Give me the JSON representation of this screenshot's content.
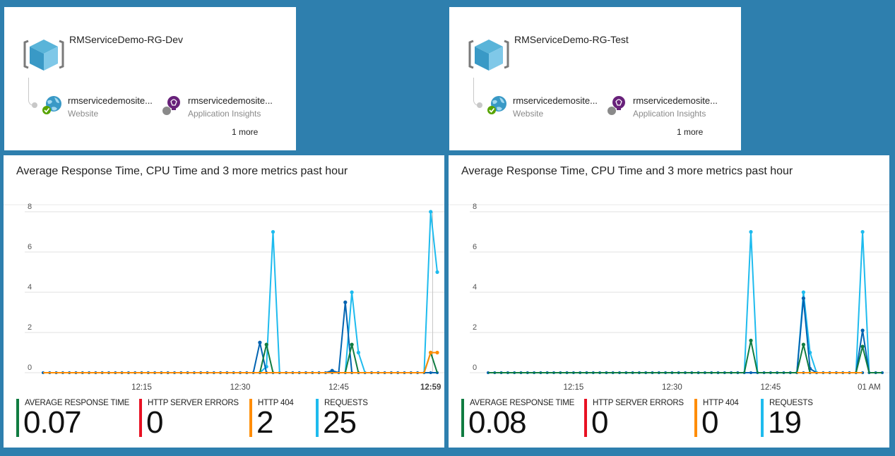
{
  "colors": {
    "avg_response_time": "#107c41",
    "http_server_errors": "#e81123",
    "http_404": "#ff8c00",
    "requests": "#1ebbee",
    "cpu_dark": "#0063b1",
    "grid": "#e1e1e1"
  },
  "groups": [
    {
      "title": "RMServiceDemo-RG-Dev",
      "resources": [
        {
          "name": "rmservicedemosite...",
          "type": "Website",
          "icon": "website-globe-icon",
          "status": "check-status-icon"
        },
        {
          "name": "rmservicedemosite...",
          "type": "Application Insights",
          "icon": "app-insights-bulb-icon",
          "status": "gray-status-icon"
        }
      ],
      "more": "1 more"
    },
    {
      "title": "RMServiceDemo-RG-Test",
      "resources": [
        {
          "name": "rmservicedemosite...",
          "type": "Website",
          "icon": "website-globe-icon",
          "status": "check-status-icon"
        },
        {
          "name": "rmservicedemosite...",
          "type": "Application Insights",
          "icon": "app-insights-bulb-icon",
          "status": "gray-status-icon"
        }
      ],
      "more": "1 more"
    }
  ],
  "charts": [
    {
      "title": "Average Response Time, CPU Time and 3 more metrics past hour",
      "metrics": [
        {
          "label": "AVERAGE RESPONSE TIME",
          "value": "0.07",
          "color": "#107c41"
        },
        {
          "label": "HTTP SERVER ERRORS",
          "value": "0",
          "color": "#e81123"
        },
        {
          "label": "HTTP 404",
          "value": "2",
          "color": "#ff8c00"
        },
        {
          "label": "REQUESTS",
          "value": "25",
          "color": "#1ebbee"
        }
      ]
    },
    {
      "title": "Average Response Time, CPU Time and 3 more metrics past hour",
      "metrics": [
        {
          "label": "AVERAGE RESPONSE TIME",
          "value": "0.08",
          "color": "#107c41"
        },
        {
          "label": "HTTP SERVER ERRORS",
          "value": "0",
          "color": "#e81123"
        },
        {
          "label": "HTTP 404",
          "value": "0",
          "color": "#ff8c00"
        },
        {
          "label": "REQUESTS",
          "value": "19",
          "color": "#1ebbee"
        }
      ]
    }
  ],
  "chart_data": [
    {
      "type": "line",
      "title": "Average Response Time, CPU Time and 3 more metrics past hour",
      "x_ticks": [
        "12:15",
        "12:30",
        "12:45",
        "12:59"
      ],
      "x_tick_minutes": [
        15,
        30,
        45,
        59
      ],
      "bold_last_tick": true,
      "cursor_minute": 59.3,
      "y_ticks": [
        "0",
        "2",
        "4",
        "6",
        "8"
      ],
      "ylim": [
        0,
        8
      ],
      "x_start_minute": 0,
      "x_end_minute": 60,
      "grid": true,
      "series": [
        {
          "key": "requests",
          "points": [
            [
              0,
              0
            ],
            [
              33,
              0
            ],
            [
              34,
              0.3
            ],
            [
              35,
              7
            ],
            [
              36,
              0
            ],
            [
              45,
              0
            ],
            [
              46,
              0
            ],
            [
              47,
              4
            ],
            [
              48,
              1
            ],
            [
              49,
              0
            ],
            [
              58,
              0
            ],
            [
              59,
              8
            ],
            [
              60,
              5
            ]
          ]
        },
        {
          "key": "cpu_dark",
          "points": [
            [
              0,
              0
            ],
            [
              32,
              0
            ],
            [
              33,
              1.5
            ],
            [
              34,
              0
            ],
            [
              43,
              0
            ],
            [
              44,
              0.1
            ],
            [
              45,
              0
            ],
            [
              46,
              3.5
            ],
            [
              47,
              0
            ],
            [
              58,
              0
            ],
            [
              59,
              0
            ],
            [
              60,
              0
            ]
          ]
        },
        {
          "key": "avg_response_time",
          "points": [
            [
              0,
              0
            ],
            [
              33,
              0
            ],
            [
              34,
              1.4
            ],
            [
              35,
              0
            ],
            [
              46,
              0
            ],
            [
              47,
              1.4
            ],
            [
              48,
              0
            ],
            [
              58,
              0
            ],
            [
              59,
              1
            ],
            [
              60,
              0
            ]
          ]
        },
        {
          "key": "http_404",
          "points": [
            [
              0,
              0
            ],
            [
              57,
              0
            ],
            [
              58,
              0
            ],
            [
              59,
              1
            ],
            [
              60,
              1
            ]
          ]
        }
      ]
    },
    {
      "type": "line",
      "title": "Average Response Time, CPU Time and 3 more metrics past hour",
      "x_ticks": [
        "12:15",
        "12:30",
        "12:45",
        "01 AM"
      ],
      "x_tick_minutes": [
        13,
        28,
        43,
        58
      ],
      "bold_last_tick": false,
      "y_ticks": [
        "0",
        "2",
        "4",
        "6",
        "8"
      ],
      "ylim": [
        0,
        8
      ],
      "x_start_minute": 0,
      "x_end_minute": 60,
      "grid": true,
      "series": [
        {
          "key": "requests",
          "points": [
            [
              0,
              0
            ],
            [
              39,
              0
            ],
            [
              40,
              7
            ],
            [
              41,
              0
            ],
            [
              47,
              0
            ],
            [
              48,
              4
            ],
            [
              49,
              1
            ],
            [
              50,
              0
            ],
            [
              56,
              0
            ],
            [
              57,
              7
            ],
            [
              58,
              0
            ],
            [
              60,
              0
            ]
          ]
        },
        {
          "key": "cpu_dark",
          "points": [
            [
              0,
              0
            ],
            [
              47,
              0
            ],
            [
              48,
              3.7
            ],
            [
              49,
              0.2
            ],
            [
              50,
              0
            ],
            [
              56,
              0
            ],
            [
              57,
              2.1
            ],
            [
              58,
              0
            ],
            [
              60,
              0
            ]
          ]
        },
        {
          "key": "avg_response_time",
          "points": [
            [
              0,
              0
            ],
            [
              39,
              0
            ],
            [
              40,
              1.6
            ],
            [
              41,
              0
            ],
            [
              47,
              0
            ],
            [
              48,
              1.4
            ],
            [
              49,
              0
            ],
            [
              56,
              0
            ],
            [
              57,
              1.3
            ],
            [
              58,
              0
            ],
            [
              60,
              0
            ]
          ]
        },
        {
          "key": "http_404",
          "points": [
            [
              47,
              0
            ],
            [
              49,
              0
            ],
            [
              57,
              0
            ]
          ]
        }
      ]
    }
  ]
}
